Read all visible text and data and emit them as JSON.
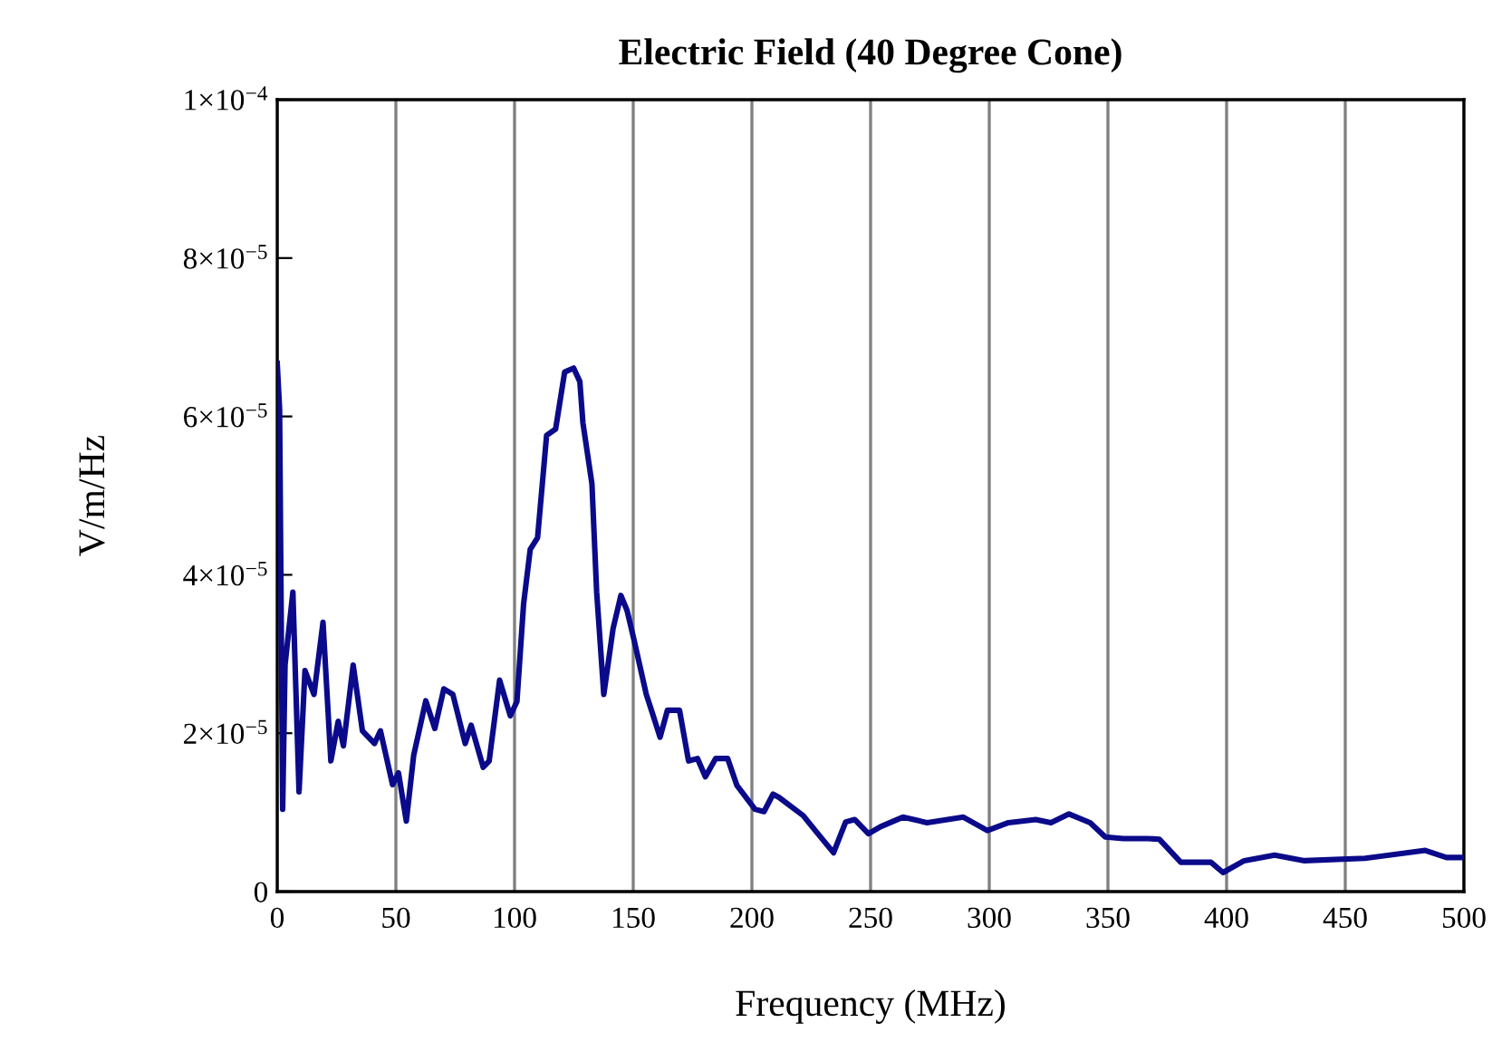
{
  "chart_data": {
    "type": "line",
    "title": "Electric Field (40 Degree Cone)",
    "xlabel": "Frequency (MHz)",
    "ylabel": "V/m/Hz",
    "xlim": [
      0,
      500
    ],
    "xticks": [
      0,
      50,
      100,
      150,
      200,
      250,
      300,
      350,
      400,
      450,
      500
    ],
    "ylim": [
      0,
      0.0001
    ],
    "yticks": [
      0,
      {
        "value": 2e-05,
        "label": "2×10$^{−5}$"
      },
      {
        "value": 4e-05,
        "label": "4×10$^{−5}$"
      },
      {
        "value": 6e-05,
        "label": "6×10$^{−5}$"
      },
      {
        "value": 8e-05,
        "label": "8×10$^{−5}$"
      },
      {
        "value": 0.0001,
        "label": "1×10$^{−4}$"
      }
    ],
    "grid": "x",
    "marker": "none",
    "line_style": "solid",
    "series": [
      {
        "color": "#0a0a8a",
        "x": [
          0,
          1,
          2.3,
          3.3,
          6.6,
          9.2,
          11.7,
          15.5,
          19.3,
          22.6,
          25.7,
          27.9,
          32,
          35.9,
          41,
          43.5,
          48.6,
          51.1,
          54.4,
          57.5,
          62.6,
          66.4,
          70.2,
          74,
          79.2,
          81.7,
          86.8,
          89.3,
          93.7,
          98.2,
          101,
          103.8,
          106.6,
          109.7,
          113.5,
          117.3,
          121.1,
          124.9,
          127.5,
          128.8,
          132.6,
          134.6,
          137.6,
          141.5,
          144.8,
          147.4,
          150.4,
          155.5,
          158,
          161.3,
          164.4,
          169.5,
          173.3,
          177.1,
          180.4,
          184.7,
          189.8,
          193.7,
          201.3,
          205.1,
          208.9,
          211.4,
          221.6,
          226.7,
          234.4,
          239.5,
          243.3,
          249.1,
          254.2,
          263.6,
          273.8,
          289.1,
          299.2,
          308.1,
          319.6,
          326,
          333.6,
          342.5,
          348.9,
          356.5,
          366.6,
          371.7,
          380.7,
          393.4,
          398.5,
          407.4,
          420.2,
          432.8,
          458.3,
          483.7,
          492.6,
          500
        ],
        "values": [
          6.67e-05,
          6.1e-05,
          1.04e-05,
          2.86e-05,
          3.78e-05,
          1.26e-05,
          2.79e-05,
          2.49e-05,
          3.4e-05,
          1.65e-05,
          2.15e-05,
          1.84e-05,
          2.86e-05,
          2.03e-05,
          1.87e-05,
          2.03e-05,
          1.35e-05,
          1.5e-05,
          8.9e-06,
          1.72e-05,
          2.41e-05,
          2.06e-05,
          2.56e-05,
          2.49e-05,
          1.87e-05,
          2.1e-05,
          1.57e-05,
          1.65e-05,
          2.67e-05,
          2.22e-05,
          2.4e-05,
          3.63e-05,
          4.32e-05,
          4.47e-05,
          5.76e-05,
          5.84e-05,
          6.56e-05,
          6.61e-05,
          6.44e-05,
          5.92e-05,
          5.15e-05,
          3.78e-05,
          2.49e-05,
          3.32e-05,
          3.74e-05,
          3.55e-05,
          3.17e-05,
          2.49e-05,
          2.26e-05,
          1.95e-05,
          2.29e-05,
          2.29e-05,
          1.65e-05,
          1.68e-05,
          1.45e-05,
          1.68e-05,
          1.68e-05,
          1.34e-05,
          1.04e-05,
          1.01e-05,
          1.23e-05,
          1.19e-05,
          9.6e-06,
          7.7e-06,
          4.9e-06,
          8.8e-06,
          9.1e-06,
          7.3e-06,
          8.2e-06,
          9.4e-06,
          8.7e-06,
          9.4e-06,
          7.7e-06,
          8.7e-06,
          9.1e-06,
          8.7e-06,
          9.8e-06,
          8.7e-06,
          6.9e-06,
          6.7e-06,
          6.7e-06,
          6.6e-06,
          3.7e-06,
          3.7e-06,
          2.4e-06,
          3.9e-06,
          4.6e-06,
          3.9e-06,
          4.2e-06,
          5.2e-06,
          4.3e-06,
          4.3e-06
        ]
      }
    ]
  }
}
